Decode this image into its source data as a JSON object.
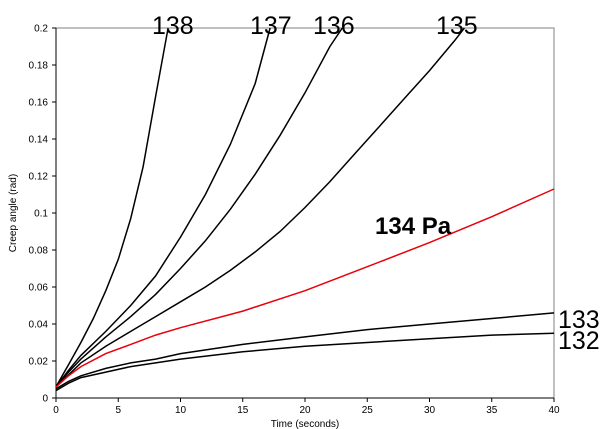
{
  "chart_data": {
    "type": "line",
    "xlabel": "Time (seconds)",
    "ylabel": "Creep angle (rad)",
    "xlim": [
      0,
      40
    ],
    "ylim": [
      0,
      0.2
    ],
    "x_ticks": [
      "0",
      "5",
      "10",
      "15",
      "20",
      "25",
      "30",
      "35",
      "40"
    ],
    "y_ticks": [
      "0",
      "0.02",
      "0.04",
      "0.06",
      "0.08",
      "0.1",
      "0.12",
      "0.14",
      "0.16",
      "0.18",
      "0.2"
    ],
    "grid": false,
    "legend": "none",
    "series": [
      {
        "name": "138",
        "label": "138",
        "color": "#000000",
        "points": [
          [
            0,
            0.006
          ],
          [
            0.5,
            0.012
          ],
          [
            1,
            0.018
          ],
          [
            2,
            0.03
          ],
          [
            3,
            0.043
          ],
          [
            4,
            0.058
          ],
          [
            5,
            0.075
          ],
          [
            6,
            0.097
          ],
          [
            7,
            0.125
          ],
          [
            8,
            0.163
          ],
          [
            9,
            0.2
          ]
        ]
      },
      {
        "name": "137",
        "label": "137",
        "color": "#000000",
        "points": [
          [
            0,
            0.006
          ],
          [
            1,
            0.015
          ],
          [
            2,
            0.023
          ],
          [
            4,
            0.036
          ],
          [
            6,
            0.05
          ],
          [
            8,
            0.066
          ],
          [
            10,
            0.087
          ],
          [
            12,
            0.11
          ],
          [
            14,
            0.137
          ],
          [
            16,
            0.17
          ],
          [
            17.2,
            0.2
          ]
        ]
      },
      {
        "name": "136",
        "label": "136",
        "color": "#000000",
        "points": [
          [
            0,
            0.006
          ],
          [
            1,
            0.014
          ],
          [
            2,
            0.021
          ],
          [
            4,
            0.033
          ],
          [
            6,
            0.044
          ],
          [
            8,
            0.056
          ],
          [
            10,
            0.07
          ],
          [
            12,
            0.085
          ],
          [
            14,
            0.102
          ],
          [
            16,
            0.121
          ],
          [
            18,
            0.142
          ],
          [
            20,
            0.165
          ],
          [
            22,
            0.19
          ],
          [
            23,
            0.2
          ]
        ]
      },
      {
        "name": "135",
        "label": "135",
        "color": "#000000",
        "points": [
          [
            0,
            0.006
          ],
          [
            2,
            0.019
          ],
          [
            4,
            0.028
          ],
          [
            6,
            0.036
          ],
          [
            8,
            0.044
          ],
          [
            10,
            0.052
          ],
          [
            12,
            0.06
          ],
          [
            14,
            0.069
          ],
          [
            16,
            0.079
          ],
          [
            18,
            0.09
          ],
          [
            20,
            0.103
          ],
          [
            22,
            0.117
          ],
          [
            24,
            0.132
          ],
          [
            26,
            0.147
          ],
          [
            28,
            0.162
          ],
          [
            30,
            0.177
          ],
          [
            32,
            0.193
          ],
          [
            32.8,
            0.2
          ]
        ]
      },
      {
        "name": "134",
        "label": "134 Pa",
        "color": "#e8000b",
        "points": [
          [
            0,
            0.006
          ],
          [
            1,
            0.012
          ],
          [
            2,
            0.017
          ],
          [
            4,
            0.024
          ],
          [
            6,
            0.029
          ],
          [
            8,
            0.034
          ],
          [
            10,
            0.038
          ],
          [
            15,
            0.047
          ],
          [
            20,
            0.058
          ],
          [
            25,
            0.071
          ],
          [
            30,
            0.084
          ],
          [
            35,
            0.098
          ],
          [
            40,
            0.113
          ]
        ]
      },
      {
        "name": "133",
        "label": "133",
        "color": "#000000",
        "points": [
          [
            0,
            0.005
          ],
          [
            1,
            0.009
          ],
          [
            2,
            0.012
          ],
          [
            4,
            0.016
          ],
          [
            6,
            0.019
          ],
          [
            8,
            0.021
          ],
          [
            10,
            0.024
          ],
          [
            15,
            0.029
          ],
          [
            20,
            0.033
          ],
          [
            25,
            0.037
          ],
          [
            30,
            0.04
          ],
          [
            35,
            0.043
          ],
          [
            40,
            0.046
          ]
        ]
      },
      {
        "name": "132",
        "label": "132",
        "color": "#000000",
        "points": [
          [
            0,
            0.004
          ],
          [
            1,
            0.008
          ],
          [
            2,
            0.011
          ],
          [
            4,
            0.014
          ],
          [
            6,
            0.017
          ],
          [
            8,
            0.019
          ],
          [
            10,
            0.021
          ],
          [
            15,
            0.025
          ],
          [
            20,
            0.028
          ],
          [
            25,
            0.03
          ],
          [
            30,
            0.032
          ],
          [
            35,
            0.034
          ],
          [
            40,
            0.035
          ]
        ]
      }
    ]
  }
}
